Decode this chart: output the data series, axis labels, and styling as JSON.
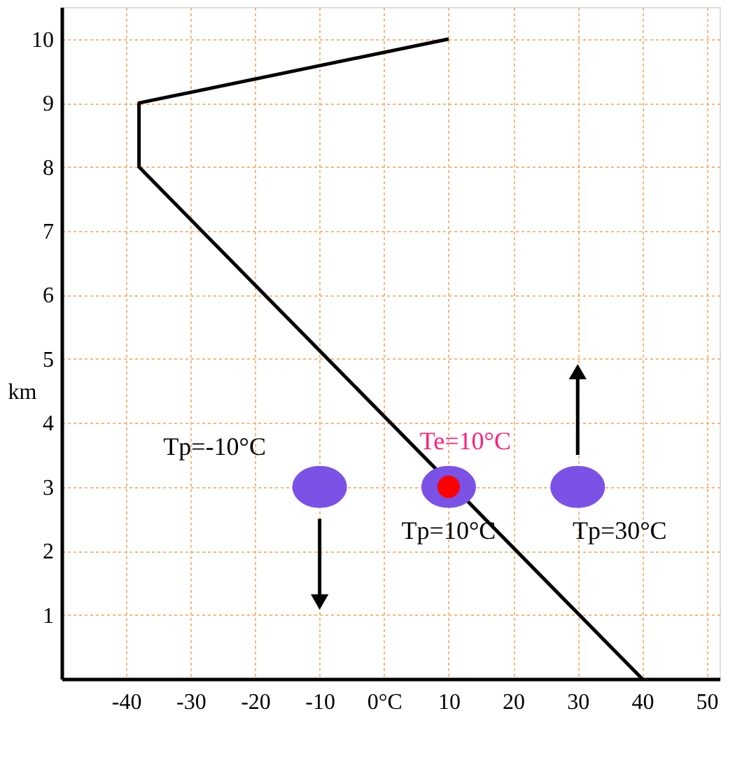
{
  "chart_data": {
    "type": "line",
    "ylabel": "km",
    "xlim": [
      -50,
      52
    ],
    "ylim": [
      0,
      10.5
    ],
    "xticks": [
      -40,
      -30,
      -20,
      -10,
      {
        "value": 0,
        "label": "0°C"
      },
      10,
      20,
      30,
      40,
      50
    ],
    "yticks": [
      1,
      2,
      3,
      4,
      5,
      6,
      7,
      8,
      9,
      10
    ],
    "grid": true,
    "legend": false,
    "series": [
      {
        "color": "#000000",
        "x": [
          40,
          -38,
          -38,
          10
        ],
        "values": [
          0,
          8,
          9,
          10
        ],
        "marker": "none"
      },
      {
        "type": "scatter",
        "color": "#7b52e6",
        "x": [
          -10,
          10,
          30
        ],
        "values": [
          3,
          3,
          3
        ],
        "marker": "circle"
      },
      {
        "type": "scatter",
        "color": "#ff0000",
        "x": [
          10
        ],
        "values": [
          3
        ],
        "marker": "circle"
      },
      {
        "type": "line",
        "color": "#000000",
        "x": [
          -10,
          -10
        ],
        "values": [
          2.5,
          1.2
        ],
        "marker": "triangle"
      },
      {
        "type": "line",
        "color": "#000000",
        "x": [
          30,
          30
        ],
        "values": [
          3.5,
          4.8
        ],
        "marker": "triangle"
      }
    ],
    "annotations": [
      {
        "text": "Tp=-10°C",
        "x": -10,
        "y": 3
      },
      {
        "text": "Tp=10°C",
        "x": 10,
        "y": 3
      },
      {
        "text": "Te=10°C",
        "x": 10,
        "y": 3
      },
      {
        "text": "Tp=30°C",
        "x": 30,
        "y": 3
      }
    ]
  }
}
